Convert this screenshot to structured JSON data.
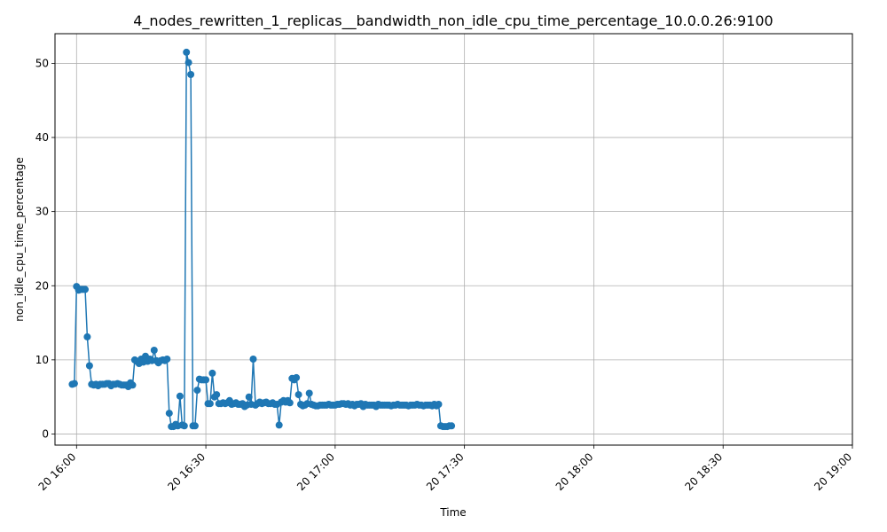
{
  "chart_data": {
    "type": "line",
    "title": "4_nodes_rewritten_1_replicas__bandwidth_non_idle_cpu_time_percentage_10.0.0.26:9100",
    "xlabel": "Time",
    "ylabel": "non_idle_cpu_time_percentage",
    "x_start": "20 15:59",
    "x_step_minutes": 0.5,
    "xlim": [
      "20 15:55",
      "20 19:00"
    ],
    "ylim": [
      -1.5,
      54
    ],
    "x_ticks": [
      "20 16:00",
      "20 16:30",
      "20 17:00",
      "20 17:30",
      "20 18:00",
      "20 18:30",
      "20 19:00"
    ],
    "y_ticks": [
      0,
      10,
      20,
      30,
      40,
      50
    ],
    "grid": true,
    "series": [
      {
        "color": "#1f77b4",
        "marker": "circle",
        "values": [
          6.7,
          6.8,
          19.9,
          19.4,
          19.5,
          19.5,
          19.5,
          13.1,
          9.2,
          6.7,
          6.6,
          6.7,
          6.5,
          6.7,
          6.7,
          6.7,
          6.8,
          6.8,
          6.5,
          6.7,
          6.7,
          6.8,
          6.7,
          6.6,
          6.6,
          6.6,
          6.4,
          6.9,
          6.6,
          10.0,
          9.8,
          9.5,
          10.1,
          9.7,
          10.5,
          9.8,
          10.1,
          9.9,
          11.3,
          9.9,
          9.6,
          9.9,
          10.0,
          9.9,
          10.1,
          2.8,
          1.0,
          1.0,
          1.3,
          1.1,
          5.1,
          1.2,
          1.1,
          51.5,
          50.1,
          48.5,
          1.1,
          1.1,
          5.9,
          7.4,
          7.3,
          7.3,
          7.3,
          4.1,
          4.1,
          8.2,
          5.0,
          5.3,
          4.1,
          4.1,
          4.2,
          4.1,
          4.2,
          4.5,
          4.0,
          4.1,
          4.2,
          4.0,
          4.0,
          4.1,
          3.7,
          3.9,
          5.0,
          4.0,
          10.1,
          3.9,
          4.1,
          4.3,
          4.1,
          4.2,
          4.3,
          4.1,
          4.1,
          4.2,
          4.0,
          4.0,
          1.2,
          4.3,
          4.5,
          4.3,
          4.5,
          4.2,
          7.5,
          7.3,
          7.6,
          5.3,
          4.0,
          3.8,
          3.9,
          4.1,
          5.5,
          4.0,
          3.9,
          3.8,
          3.8,
          3.9,
          3.9,
          3.9,
          3.9,
          4.0,
          3.9,
          3.9,
          3.9,
          4.0,
          4.0,
          4.1,
          4.1,
          4.0,
          4.1,
          3.9,
          4.0,
          3.8,
          4.0,
          4.0,
          4.1,
          3.7,
          4.0,
          3.9,
          3.9,
          3.9,
          3.9,
          3.7,
          4.0,
          3.9,
          3.9,
          3.9,
          3.9,
          3.9,
          3.8,
          3.9,
          3.9,
          4.0,
          3.9,
          3.9,
          3.9,
          3.9,
          3.8,
          3.9,
          3.9,
          3.9,
          4.0,
          3.9,
          3.9,
          3.8,
          3.9,
          3.9,
          3.9,
          3.8,
          4.0,
          3.8,
          4.0,
          1.1,
          1.0,
          1.0,
          1.0,
          1.1,
          1.1
        ]
      }
    ]
  }
}
